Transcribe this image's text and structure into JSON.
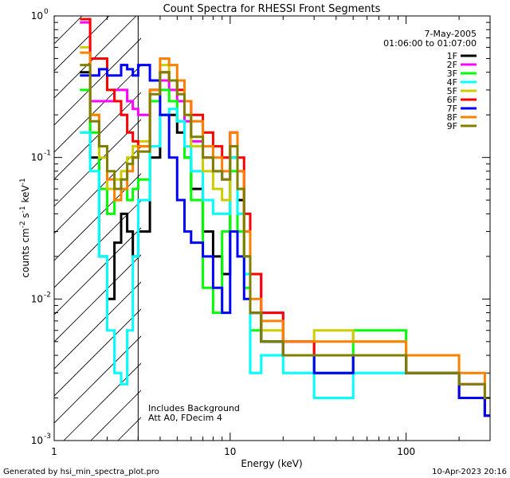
{
  "chart_data": {
    "type": "line",
    "title": "Count Spectra for RHESSI Front Segments",
    "xlabel": "Energy (keV)",
    "ylabel": "counts cm",
    "ylabel_sup1": "-2",
    "ylabel_mid": " s",
    "ylabel_sup2": "-1",
    "ylabel_mid2": " keV",
    "ylabel_sup3": "-1",
    "xscale": "log",
    "yscale": "log",
    "xlim": [
      1,
      300
    ],
    "ylim": [
      0.001,
      1
    ],
    "x_ticks": [
      {
        "value": 1,
        "label": "1"
      },
      {
        "value": 10,
        "label": "10"
      },
      {
        "value": 100,
        "label": "100"
      }
    ],
    "y_ticks": [
      {
        "value": 0.001,
        "base": "10",
        "exp": "-3"
      },
      {
        "value": 0.01,
        "base": "10",
        "exp": "-2"
      },
      {
        "value": 0.1,
        "base": "10",
        "exp": "-1"
      },
      {
        "value": 1,
        "base": "10",
        "exp": "0"
      }
    ],
    "legend_date": "7-May-2005",
    "legend_time": "01:06:00 to 01:07:00",
    "legend_position": "top-right",
    "notes": [
      "Includes Background",
      "Att A0, FDecim 4"
    ],
    "footer_left": "Generated by hsi_min_spectra_plot.pro",
    "footer_right": "10-Apr-2023 20:16",
    "attenuator_region_xmax": 3,
    "series": [
      {
        "name": "1F",
        "color": "#000000",
        "x": [
          1.4,
          1.6,
          1.8,
          2.0,
          2.2,
          2.4,
          2.6,
          2.8,
          3.0,
          3.5,
          4.0,
          4.5,
          5.0,
          5.5,
          6.0,
          7.0,
          8.0,
          9.0,
          10,
          11,
          12,
          13,
          15,
          20,
          30,
          50,
          100,
          200,
          280
        ],
        "values": [
          0.4,
          0.1,
          0.02,
          0.01,
          0.025,
          0.04,
          0.03,
          0.02,
          0.03,
          0.1,
          0.2,
          0.2,
          0.15,
          0.1,
          0.06,
          0.03,
          0.02,
          0.015,
          0.1,
          0.05,
          0.02,
          0.008,
          0.005,
          0.004,
          0.003,
          0.004,
          0.003,
          0.002,
          0.0015
        ]
      },
      {
        "name": "2F",
        "color": "#ff00ff",
        "x": [
          1.4,
          1.6,
          1.8,
          2.0,
          2.2,
          2.4,
          2.6,
          2.8,
          3.0,
          3.5,
          4.0,
          4.5,
          5.0,
          5.5,
          6.0,
          7.0,
          8.0,
          9.0,
          10,
          11,
          12,
          13,
          15,
          20,
          30,
          50,
          100,
          200,
          280
        ],
        "values": [
          0.9,
          0.25,
          0.25,
          0.25,
          0.3,
          0.3,
          0.25,
          0.22,
          0.2,
          0.3,
          0.35,
          0.3,
          0.25,
          0.18,
          0.13,
          0.1,
          0.08,
          0.07,
          0.15,
          0.08,
          0.03,
          0.015,
          0.008,
          0.005,
          0.004,
          0.004,
          0.003,
          0.0025,
          0.002
        ]
      },
      {
        "name": "3F",
        "color": "#00ff00",
        "x": [
          1.4,
          1.6,
          1.8,
          2.0,
          2.2,
          2.4,
          2.6,
          2.8,
          3.0,
          3.5,
          4.0,
          4.5,
          5.0,
          5.5,
          6.0,
          7.0,
          8.0,
          9.0,
          10,
          11,
          12,
          13,
          15,
          20,
          30,
          50,
          100,
          200,
          280
        ],
        "values": [
          0.3,
          0.15,
          0.06,
          0.04,
          0.05,
          0.06,
          0.05,
          0.06,
          0.07,
          0.25,
          0.3,
          0.25,
          0.18,
          0.1,
          0.05,
          0.012,
          0.008,
          0.03,
          0.08,
          0.03,
          0.012,
          0.006,
          0.005,
          0.004,
          0.003,
          0.006,
          0.003,
          0.002,
          0.0015
        ]
      },
      {
        "name": "4F",
        "color": "#00ffff",
        "x": [
          1.4,
          1.6,
          1.8,
          2.0,
          2.2,
          2.4,
          2.6,
          2.8,
          3.0,
          3.5,
          4.0,
          4.5,
          5.0,
          5.5,
          6.0,
          7.0,
          8.0,
          9.0,
          10,
          11,
          12,
          13,
          15,
          20,
          30,
          50,
          100,
          200,
          280
        ],
        "values": [
          0.15,
          0.08,
          0.02,
          0.006,
          0.003,
          0.0025,
          0.006,
          0.02,
          0.05,
          0.12,
          0.2,
          0.22,
          0.18,
          0.12,
          0.08,
          0.05,
          0.04,
          0.04,
          0.1,
          0.04,
          0.015,
          0.003,
          0.004,
          0.003,
          0.002,
          0.003,
          0.003,
          0.002,
          0.0015
        ]
      },
      {
        "name": "5F",
        "color": "#cccc00",
        "x": [
          1.4,
          1.6,
          1.8,
          2.0,
          2.2,
          2.4,
          2.6,
          2.8,
          3.0,
          3.5,
          4.0,
          4.5,
          5.0,
          5.5,
          6.0,
          7.0,
          8.0,
          9.0,
          10,
          11,
          12,
          13,
          15,
          20,
          30,
          50,
          100,
          200,
          280
        ],
        "values": [
          0.6,
          0.2,
          0.1,
          0.06,
          0.07,
          0.08,
          0.1,
          0.12,
          0.13,
          0.3,
          0.45,
          0.35,
          0.3,
          0.2,
          0.12,
          0.08,
          0.06,
          0.05,
          0.12,
          0.06,
          0.02,
          0.008,
          0.006,
          0.004,
          0.006,
          0.005,
          0.003,
          0.002,
          0.0015
        ]
      },
      {
        "name": "6F",
        "color": "#ff0000",
        "x": [
          1.4,
          1.6,
          1.8,
          2.0,
          2.2,
          2.4,
          2.6,
          2.8,
          3.0,
          3.5,
          4.0,
          4.5,
          5.0,
          5.5,
          6.0,
          7.0,
          8.0,
          9.0,
          10,
          11,
          12,
          13,
          15,
          20,
          30,
          50,
          100,
          200,
          280
        ],
        "values": [
          0.95,
          0.5,
          0.5,
          0.3,
          0.25,
          0.2,
          0.15,
          0.13,
          0.12,
          0.3,
          0.4,
          0.35,
          0.3,
          0.25,
          0.2,
          0.15,
          0.12,
          0.1,
          0.15,
          0.1,
          0.04,
          0.015,
          0.008,
          0.005,
          0.004,
          0.004,
          0.003,
          0.002,
          0.0015
        ]
      },
      {
        "name": "7F",
        "color": "#0000ff",
        "x": [
          1.4,
          1.6,
          1.8,
          2.0,
          2.2,
          2.4,
          2.6,
          2.8,
          3.0,
          3.5,
          4.0,
          4.5,
          5.0,
          5.5,
          6.0,
          7.0,
          8.0,
          9.0,
          10,
          11,
          12,
          13,
          15,
          20,
          30,
          50,
          100,
          200,
          280
        ],
        "values": [
          0.38,
          0.38,
          0.42,
          0.38,
          0.38,
          0.45,
          0.42,
          0.38,
          0.45,
          0.35,
          0.2,
          0.1,
          0.05,
          0.03,
          0.025,
          0.02,
          0.012,
          0.008,
          0.03,
          0.02,
          0.01,
          0.008,
          0.005,
          0.004,
          0.003,
          0.004,
          0.003,
          0.002,
          0.0015
        ]
      },
      {
        "name": "8F",
        "color": "#ff8000",
        "x": [
          1.4,
          1.6,
          1.8,
          2.0,
          2.2,
          2.4,
          2.6,
          2.8,
          3.0,
          3.5,
          4.0,
          4.5,
          5.0,
          5.5,
          6.0,
          7.0,
          8.0,
          9.0,
          10,
          11,
          12,
          13,
          15,
          20,
          30,
          50,
          100,
          200,
          280
        ],
        "values": [
          0.55,
          0.2,
          0.12,
          0.07,
          0.05,
          0.06,
          0.08,
          0.1,
          0.12,
          0.3,
          0.5,
          0.45,
          0.35,
          0.25,
          0.18,
          0.12,
          0.1,
          0.08,
          0.15,
          0.08,
          0.03,
          0.01,
          0.007,
          0.005,
          0.005,
          0.005,
          0.004,
          0.003,
          0.002
        ]
      },
      {
        "name": "9F",
        "color": "#808000",
        "x": [
          1.4,
          1.6,
          1.8,
          2.0,
          2.2,
          2.4,
          2.6,
          2.8,
          3.0,
          3.5,
          4.0,
          4.5,
          5.0,
          5.5,
          6.0,
          7.0,
          8.0,
          9.0,
          10,
          11,
          12,
          13,
          15,
          20,
          30,
          50,
          100,
          200,
          280
        ],
        "values": [
          0.45,
          0.18,
          0.12,
          0.08,
          0.06,
          0.07,
          0.09,
          0.1,
          0.11,
          0.28,
          0.4,
          0.35,
          0.28,
          0.2,
          0.14,
          0.1,
          0.08,
          0.07,
          0.12,
          0.06,
          0.02,
          0.008,
          0.005,
          0.004,
          0.004,
          0.004,
          0.003,
          0.0025,
          0.002
        ]
      }
    ]
  }
}
